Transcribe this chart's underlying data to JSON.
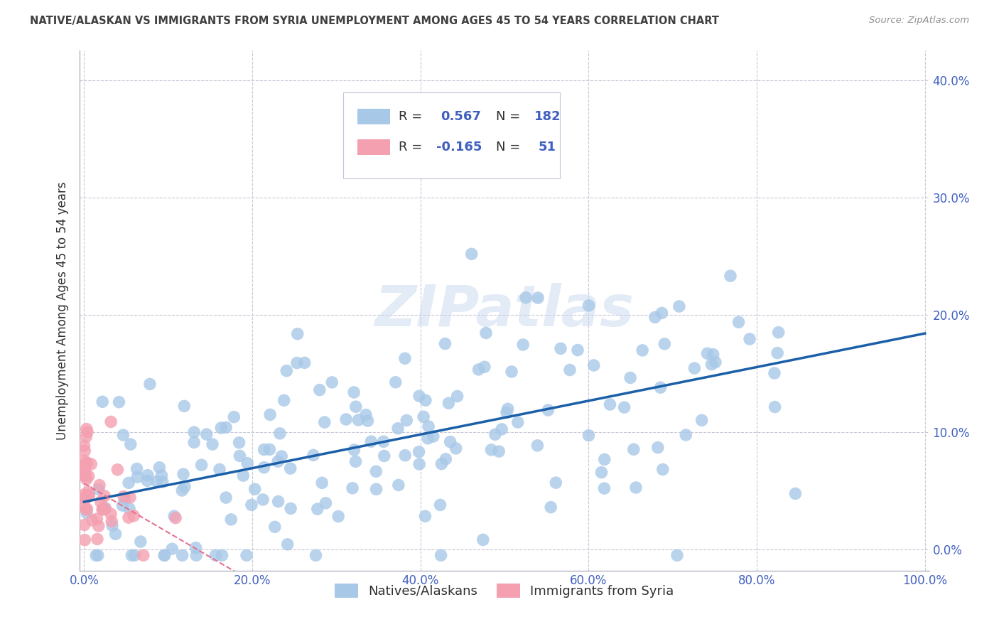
{
  "title": "NATIVE/ALASKAN VS IMMIGRANTS FROM SYRIA UNEMPLOYMENT AMONG AGES 45 TO 54 YEARS CORRELATION CHART",
  "source": "Source: ZipAtlas.com",
  "ylabel_label": "Unemployment Among Ages 45 to 54 years",
  "legend_label1": "Natives/Alaskans",
  "legend_label2": "Immigrants from Syria",
  "R1": 0.567,
  "N1": 182,
  "R2": -0.165,
  "N2": 51,
  "blue_color": "#a8c8e8",
  "pink_color": "#f4a0b0",
  "blue_line_color": "#1a5fa8",
  "pink_line_color": "#e87090",
  "watermark": "ZIPatlas",
  "background_color": "#ffffff",
  "grid_color": "#c8c8d8",
  "title_color": "#404040",
  "tick_label_color": "#4060c0"
}
